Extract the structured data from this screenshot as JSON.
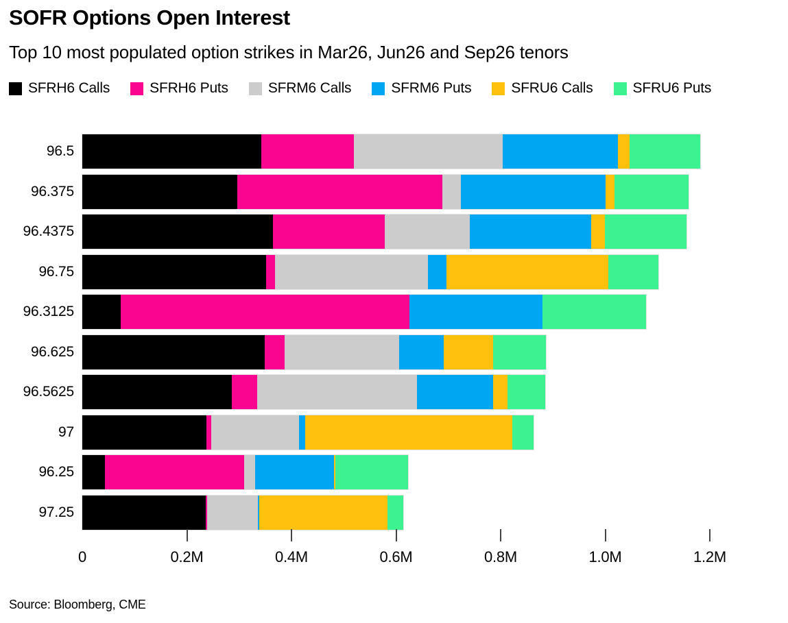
{
  "header": {
    "title": "SOFR Options Open Interest",
    "subtitle": "Top 10 most populated option strikes in Mar26, Jun26 and Sep26 tenors"
  },
  "source_line": "Source: Bloomberg, CME",
  "colors": {
    "sfrh6_calls": "#000000",
    "sfrh6_puts": "#fa0590",
    "sfrm6_calls": "#cccccc",
    "sfrm6_puts": "#00a6f2",
    "sfru6_calls": "#ffc10d",
    "sfru6_puts": "#3df291",
    "tick": "#444444",
    "background": "#ffffff"
  },
  "chart_data": {
    "type": "bar",
    "orientation": "horizontal",
    "stacked": true,
    "title": "SOFR Options Open Interest",
    "subtitle": "Top 10 most populated option strikes in Mar26, Jun26 and Sep26 tenors",
    "value_unit": "millions of contracts (M)",
    "categories": [
      "96.5",
      "96.375",
      "96.4375",
      "96.75",
      "96.3125",
      "96.625",
      "96.5625",
      "97",
      "96.25",
      "97.25"
    ],
    "series": [
      {
        "name": "SFRH6 Calls",
        "color": "#000000",
        "values": [
          0.342,
          0.296,
          0.364,
          0.351,
          0.074,
          0.349,
          0.286,
          0.237,
          0.043,
          0.236
        ]
      },
      {
        "name": "SFRH6 Puts",
        "color": "#fa0590",
        "values": [
          0.177,
          0.393,
          0.214,
          0.018,
          0.552,
          0.038,
          0.048,
          0.01,
          0.267,
          0.003
        ]
      },
      {
        "name": "SFRM6 Calls",
        "color": "#cccccc",
        "values": [
          0.285,
          0.035,
          0.163,
          0.292,
          0.0,
          0.219,
          0.306,
          0.167,
          0.021,
          0.097
        ]
      },
      {
        "name": "SFRM6 Puts",
        "color": "#00a6f2",
        "values": [
          0.22,
          0.277,
          0.232,
          0.036,
          0.254,
          0.085,
          0.146,
          0.012,
          0.15,
          0.003
        ]
      },
      {
        "name": "SFRU6 Calls",
        "color": "#ffc10d",
        "values": [
          0.023,
          0.017,
          0.026,
          0.309,
          0.0,
          0.094,
          0.027,
          0.396,
          0.003,
          0.245
        ]
      },
      {
        "name": "SFRU6 Puts",
        "color": "#3df291",
        "values": [
          0.135,
          0.141,
          0.157,
          0.096,
          0.198,
          0.101,
          0.072,
          0.041,
          0.139,
          0.03
        ]
      }
    ],
    "totals": [
      1.182,
      1.159,
      1.156,
      1.102,
      1.078,
      0.886,
      0.885,
      0.863,
      0.623,
      0.614
    ],
    "x_axis": {
      "tick_labels": [
        "0",
        "0.2M",
        "0.4M",
        "0.6M",
        "0.8M",
        "1.0M",
        "1.2M"
      ],
      "tick_values": [
        0,
        0.2,
        0.4,
        0.6,
        0.8,
        1.0,
        1.2
      ],
      "min": 0,
      "max": 1.2,
      "grid": false
    },
    "legend_position": "top"
  }
}
